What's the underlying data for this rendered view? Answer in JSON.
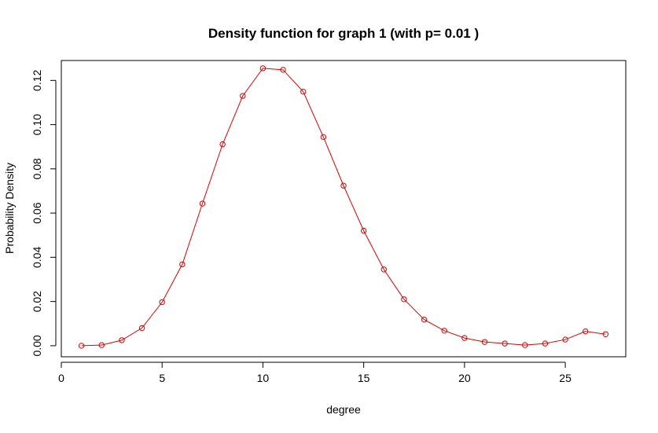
{
  "chart_data": {
    "type": "line",
    "title": "Density function for graph 1 (with p= 0.01 )",
    "xlabel": "degree",
    "ylabel": "Probability Density",
    "xlim": [
      0,
      28
    ],
    "ylim": [
      -0.005,
      0.129
    ],
    "x_ticks": [
      0,
      5,
      10,
      15,
      20,
      25
    ],
    "y_ticks": [
      0.0,
      0.02,
      0.04,
      0.06,
      0.08,
      0.1,
      0.12
    ],
    "y_tick_labels": [
      "0.00",
      "0.02",
      "0.04",
      "0.06",
      "0.08",
      "0.10",
      "0.12"
    ],
    "grid": false,
    "series": [
      {
        "color": "#dd0000",
        "marker": "open-circle",
        "x": [
          1,
          2,
          3,
          4,
          5,
          6,
          7,
          8,
          9,
          10,
          11,
          12,
          13,
          14,
          15,
          16,
          17,
          18,
          19,
          20,
          21,
          22,
          23,
          24,
          25,
          26,
          27
        ],
        "y": [
          0.0,
          0.0003,
          0.0025,
          0.008,
          0.0197,
          0.0368,
          0.0643,
          0.0911,
          0.113,
          0.1255,
          0.1248,
          0.1149,
          0.0944,
          0.0724,
          0.052,
          0.0345,
          0.021,
          0.0118,
          0.0068,
          0.0035,
          0.0017,
          0.001,
          0.0003,
          0.001,
          0.0028,
          0.0065,
          0.0052
        ]
      }
    ]
  }
}
